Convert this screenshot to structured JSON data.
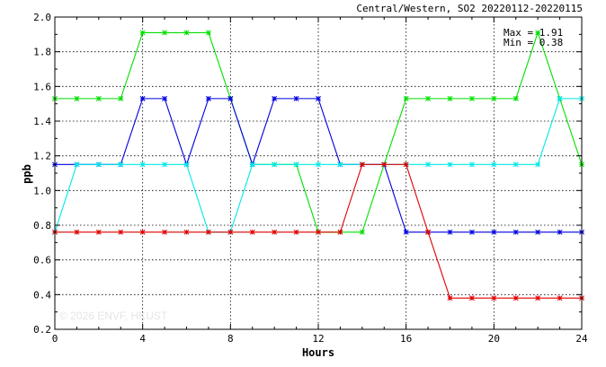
{
  "chart_data": {
    "type": "line",
    "title": "Central/Western, SO2 20220112-20220115",
    "xlabel": "Hours",
    "ylabel": "ppb",
    "xlim": [
      0,
      24
    ],
    "ylim": [
      0.2,
      2.0
    ],
    "x_ticks": [
      0,
      4,
      8,
      12,
      16,
      20,
      24
    ],
    "y_ticks": [
      0.2,
      0.4,
      0.6,
      0.8,
      1.0,
      1.2,
      1.4,
      1.6,
      1.8,
      2.0
    ],
    "x_tick_labels": [
      "0",
      "4",
      "8",
      "12",
      "16",
      "20",
      "24"
    ],
    "y_tick_labels": [
      "0.2",
      "0.4",
      "0.6",
      "0.8",
      "1.0",
      "1.2",
      "1.4",
      "1.6",
      "1.8",
      "2.0"
    ],
    "grid": true,
    "stats": {
      "max": "Max = 1.91",
      "min": "Min = 0.38"
    },
    "watermark": "© 2026  ENVF, HKUST",
    "x": [
      0,
      1,
      2,
      3,
      4,
      5,
      6,
      7,
      8,
      9,
      10,
      11,
      12,
      13,
      14,
      15,
      16,
      17,
      18,
      19,
      20,
      21,
      22,
      23,
      24
    ],
    "series": [
      {
        "color": "#00e000",
        "values": [
          1.53,
          1.53,
          1.53,
          1.53,
          1.91,
          1.91,
          1.91,
          1.91,
          1.53,
          1.15,
          1.15,
          1.15,
          0.76,
          0.76,
          0.76,
          1.15,
          1.53,
          1.53,
          1.53,
          1.53,
          1.53,
          1.53,
          1.91,
          1.53,
          1.15
        ]
      },
      {
        "color": "#0000e0",
        "values": [
          1.15,
          1.15,
          1.15,
          1.15,
          1.53,
          1.53,
          1.15,
          1.53,
          1.53,
          1.15,
          1.53,
          1.53,
          1.53,
          1.15,
          1.15,
          1.15,
          0.76,
          0.76,
          0.76,
          0.76,
          0.76,
          0.76,
          0.76,
          0.76,
          0.76
        ]
      },
      {
        "color": "#00e8e8",
        "values": [
          0.76,
          1.15,
          1.15,
          1.15,
          1.15,
          1.15,
          1.15,
          0.76,
          0.76,
          1.15,
          1.15,
          1.15,
          1.15,
          1.15,
          1.15,
          1.15,
          1.15,
          1.15,
          1.15,
          1.15,
          1.15,
          1.15,
          1.15,
          1.53,
          1.53
        ]
      },
      {
        "color": "#e00000",
        "values": [
          0.76,
          0.76,
          0.76,
          0.76,
          0.76,
          0.76,
          0.76,
          0.76,
          0.76,
          0.76,
          0.76,
          0.76,
          0.76,
          0.76,
          1.15,
          1.15,
          1.15,
          0.76,
          0.38,
          0.38,
          0.38,
          0.38,
          0.38,
          0.38,
          0.38
        ]
      }
    ]
  }
}
